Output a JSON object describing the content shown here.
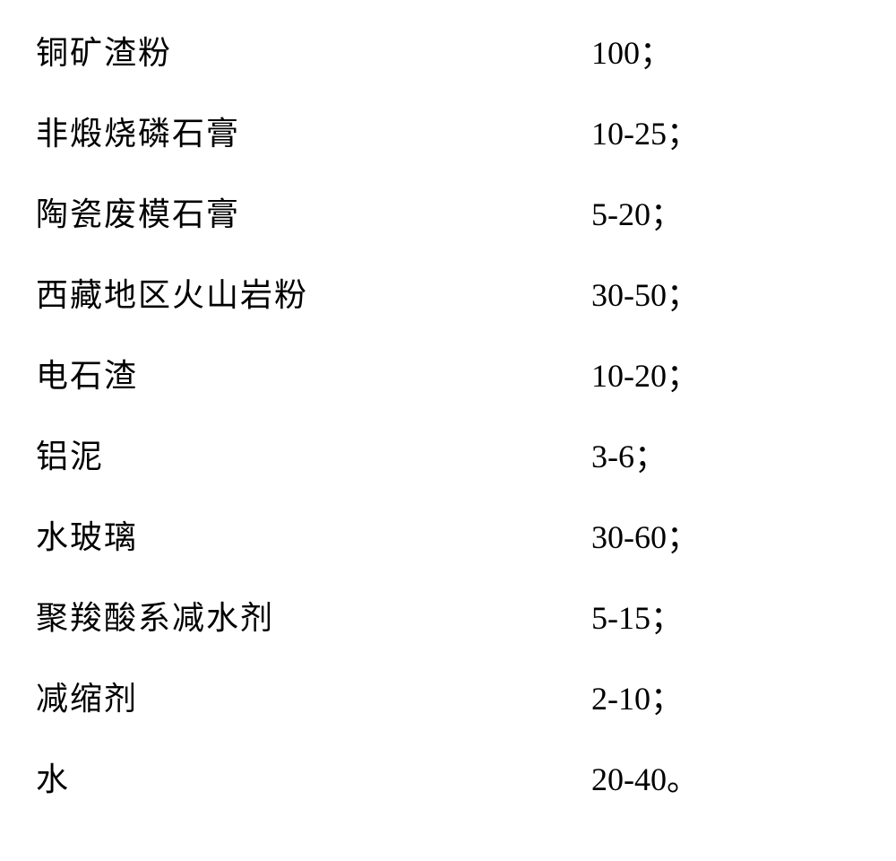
{
  "text_color": "#000000",
  "background_color": "#ffffff",
  "font_size": 36,
  "font_family": "SimSun",
  "items": [
    {
      "label": "铜矿渣粉",
      "value": "100；"
    },
    {
      "label": "非煅烧磷石膏",
      "value": "10-25；"
    },
    {
      "label": "陶瓷废模石膏",
      "value": "5-20；"
    },
    {
      "label": "西藏地区火山岩粉",
      "value": "30-50；"
    },
    {
      "label": "电石渣",
      "value": "10-20；"
    },
    {
      "label": "铝泥",
      "value": "3-6；"
    },
    {
      "label": "水玻璃",
      "value": "30-60；"
    },
    {
      "label": "聚羧酸系减水剂",
      "value": "5-15；"
    },
    {
      "label": "减缩剂",
      "value": "2-10；"
    },
    {
      "label": "水",
      "value": "20-40。"
    }
  ]
}
